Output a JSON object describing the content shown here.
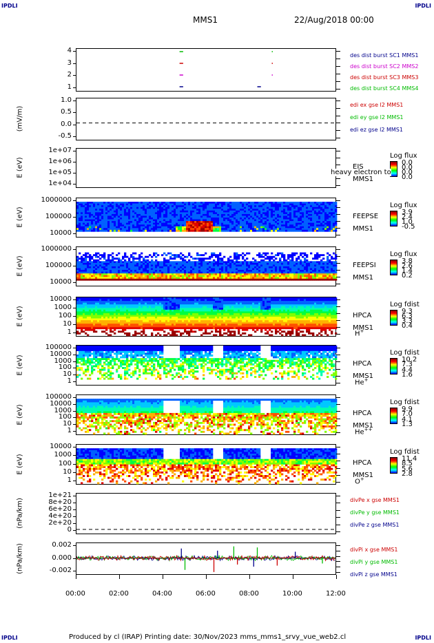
{
  "header": {
    "corner_tl": "IPDLI",
    "corner_tr": "IPDLI",
    "corner_bl": "IPDLI",
    "corner_br": "IPDLI",
    "spacecraft": "MMS1",
    "date": "22/Aug/2018 00:00"
  },
  "footer": {
    "text": "Produced by cl (IRAP)    Printing date: 30/Nov/2023    mms_mms1_srvy_vue_web2.cl"
  },
  "chart_data": [
    {
      "type": "timeline",
      "name": "burst",
      "ylim": [
        0.5,
        4.5
      ],
      "yticks": [
        "4",
        "3",
        "2",
        "1"
      ],
      "legend": [
        {
          "text": "des dist burst SC1 MMS1",
          "color": "#00008b"
        },
        {
          "text": "des dist burst SC2 MMS2",
          "color": "#cc00cc"
        },
        {
          "text": "des dist burst SC3 MMS3",
          "color": "#cc0000"
        },
        {
          "text": "des dist burst SC4 MMS4",
          "color": "#00bb00"
        }
      ],
      "segments": [
        {
          "sc": 4,
          "start": "04:45",
          "end": "04:55",
          "color": "#00bb00"
        },
        {
          "sc": 3,
          "start": "04:45",
          "end": "04:55",
          "color": "#cc0000"
        },
        {
          "sc": 2,
          "start": "04:45",
          "end": "04:55",
          "color": "#cc00cc"
        },
        {
          "sc": 1,
          "start": "04:45",
          "end": "04:55",
          "color": "#00008b"
        },
        {
          "sc": 1,
          "start": "08:20",
          "end": "08:30",
          "color": "#00008b"
        },
        {
          "sc": 4,
          "start": "09:00",
          "end": "09:02",
          "color": "#00bb00"
        },
        {
          "sc": 3,
          "start": "09:00",
          "end": "09:02",
          "color": "#cc0000"
        },
        {
          "sc": 2,
          "start": "09:00",
          "end": "09:02",
          "color": "#cc00cc"
        }
      ]
    },
    {
      "type": "line",
      "name": "edi",
      "ylabel": "(mV/m)",
      "ylim": [
        -0.75,
        1.1
      ],
      "yticks": [
        "1.0",
        "0.5",
        "0.0",
        "-0.5"
      ],
      "legend": [
        {
          "text": "edi ex gse l2 MMS1",
          "color": "#cc0000"
        },
        {
          "text": "edi ey gse l2 MMS1",
          "color": "#00bb00"
        },
        {
          "text": "edi ez gse l2 MMS1",
          "color": "#00008b"
        }
      ]
    },
    {
      "type": "spectrogram",
      "name": "eis",
      "ylabel": "E (eV)",
      "yticks": [
        "1e+07",
        "1e+06",
        "1e+05",
        "1e+04"
      ],
      "labels": [
        "EIS",
        "MMS1"
      ],
      "overlay": "heavy electron to",
      "colorbar": {
        "title": "Log flux",
        "values": [
          "0.0",
          "0.0",
          "0.0",
          "0.0"
        ]
      }
    },
    {
      "type": "spectrogram",
      "name": "feepse",
      "ylabel": "E (eV)",
      "yticks": [
        "1000000",
        "100000",
        "10000"
      ],
      "labels": [
        "FEEPSE",
        "MMS1"
      ],
      "colorbar": {
        "title": "Log flux",
        "values": [
          "3.9",
          "2.4",
          "1.0",
          "-0.5"
        ]
      }
    },
    {
      "type": "spectrogram",
      "name": "feepsi",
      "ylabel": "E (eV)",
      "yticks": [
        "1000000",
        "100000",
        "10000"
      ],
      "labels": [
        "FEEPSI",
        "MMS1"
      ],
      "colorbar": {
        "title": "Log flux",
        "values": [
          "3.8",
          "2.6",
          "1.4",
          "0.2"
        ]
      }
    },
    {
      "type": "spectrogram",
      "name": "hpca-h",
      "ylabel": "E (eV)",
      "yticks": [
        "10000",
        "1000",
        "100",
        "10",
        "1"
      ],
      "labels": [
        "HPCA",
        "MMS1"
      ],
      "species": "H",
      "charge": "+",
      "colorbar": {
        "title": "Log fdist",
        "values": [
          "9.3",
          "6.3",
          "3.3",
          "0.4"
        ]
      }
    },
    {
      "type": "spectrogram",
      "name": "hpca-he",
      "ylabel": "E (eV)",
      "yticks": [
        "100000",
        "10000",
        "1000",
        "100",
        "10",
        "1"
      ],
      "labels": [
        "HPCA",
        "MMS1"
      ],
      "species": "He",
      "charge": "+",
      "colorbar": {
        "title": "Log fdist",
        "values": [
          "10.2",
          "7.3",
          "4.4",
          "1.6"
        ]
      }
    },
    {
      "type": "spectrogram",
      "name": "hpca-he2",
      "ylabel": "E (eV)",
      "yticks": [
        "100000",
        "10000",
        "1000",
        "100",
        "10",
        "1"
      ],
      "labels": [
        "HPCA",
        "MMS1"
      ],
      "species": "He",
      "charge": "++",
      "colorbar": {
        "title": "Log fdist",
        "values": [
          "9.9",
          "7.0",
          "4.1",
          "1.3"
        ]
      }
    },
    {
      "type": "spectrogram",
      "name": "hpca-o",
      "ylabel": "E (eV)",
      "yticks": [
        "10000",
        "1000",
        "100",
        "10",
        "1"
      ],
      "labels": [
        "HPCA",
        "MMS1"
      ],
      "species": "O",
      "charge": "+",
      "colorbar": {
        "title": "Log fdist",
        "values": [
          "11.4",
          "8.5",
          "5.6",
          "2.8"
        ]
      }
    },
    {
      "type": "line",
      "name": "divpe",
      "ylabel": "(nPa/km)",
      "ylim": [
        -4e+19,
        1.1e+21
      ],
      "yticks": [
        "1e+21",
        "8e+20",
        "6e+20",
        "4e+20",
        "2e+20",
        "0"
      ],
      "legend": [
        {
          "text": "divPe x gse MMS1",
          "color": "#cc0000"
        },
        {
          "text": "divPe y gse MMS1",
          "color": "#00bb00"
        },
        {
          "text": "divPe z gse MMS1",
          "color": "#00008b"
        }
      ]
    },
    {
      "type": "line",
      "name": "divpi",
      "ylabel": "(nPa/km)",
      "ylim": [
        -0.003,
        0.0028
      ],
      "yticks": [
        "0.002",
        "0.000",
        "-0.002"
      ],
      "legend": [
        {
          "text": "divPi x gse MMS1",
          "color": "#cc0000"
        },
        {
          "text": "divPi y gse MMS1",
          "color": "#00bb00"
        },
        {
          "text": "divPi z gse MMS1",
          "color": "#00008b"
        }
      ],
      "spikes": [
        {
          "t": "04:50",
          "v": 0.0018
        },
        {
          "t": "05:00",
          "v": -0.0022
        },
        {
          "t": "06:20",
          "v": -0.0026
        },
        {
          "t": "06:30",
          "v": 0.0014
        },
        {
          "t": "07:15",
          "v": 0.0022
        },
        {
          "t": "07:25",
          "v": -0.0012
        },
        {
          "t": "08:10",
          "v": -0.0016
        },
        {
          "t": "08:20",
          "v": 0.002
        },
        {
          "t": "09:15",
          "v": -0.0014
        },
        {
          "t": "10:05",
          "v": 0.0012
        },
        {
          "t": "11:20",
          "v": -0.001
        }
      ]
    }
  ],
  "xaxis": {
    "ticks": [
      "00:00",
      "02:00",
      "04:00",
      "06:00",
      "08:00",
      "10:00",
      "12:00"
    ]
  }
}
